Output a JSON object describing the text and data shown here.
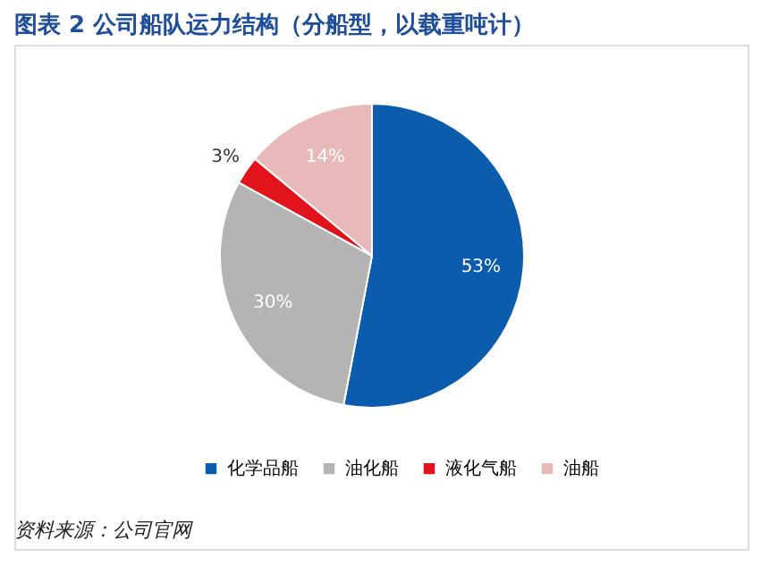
{
  "chart_data": {
    "type": "pie",
    "title": "图表 2   公司船队运力结构（分船型，以载重吨计）",
    "categories": [
      "化学品船",
      "油化船",
      "液化气船",
      "油船"
    ],
    "values": [
      53,
      30,
      3,
      14
    ],
    "colors": [
      "#0b5cad",
      "#b4b4b4",
      "#e3131b",
      "#e8b9b8"
    ],
    "value_labels": [
      "53%",
      "30%",
      "3%",
      "14%"
    ],
    "legend": "bottom",
    "annotations": [
      "资料来源：公司官网"
    ]
  }
}
